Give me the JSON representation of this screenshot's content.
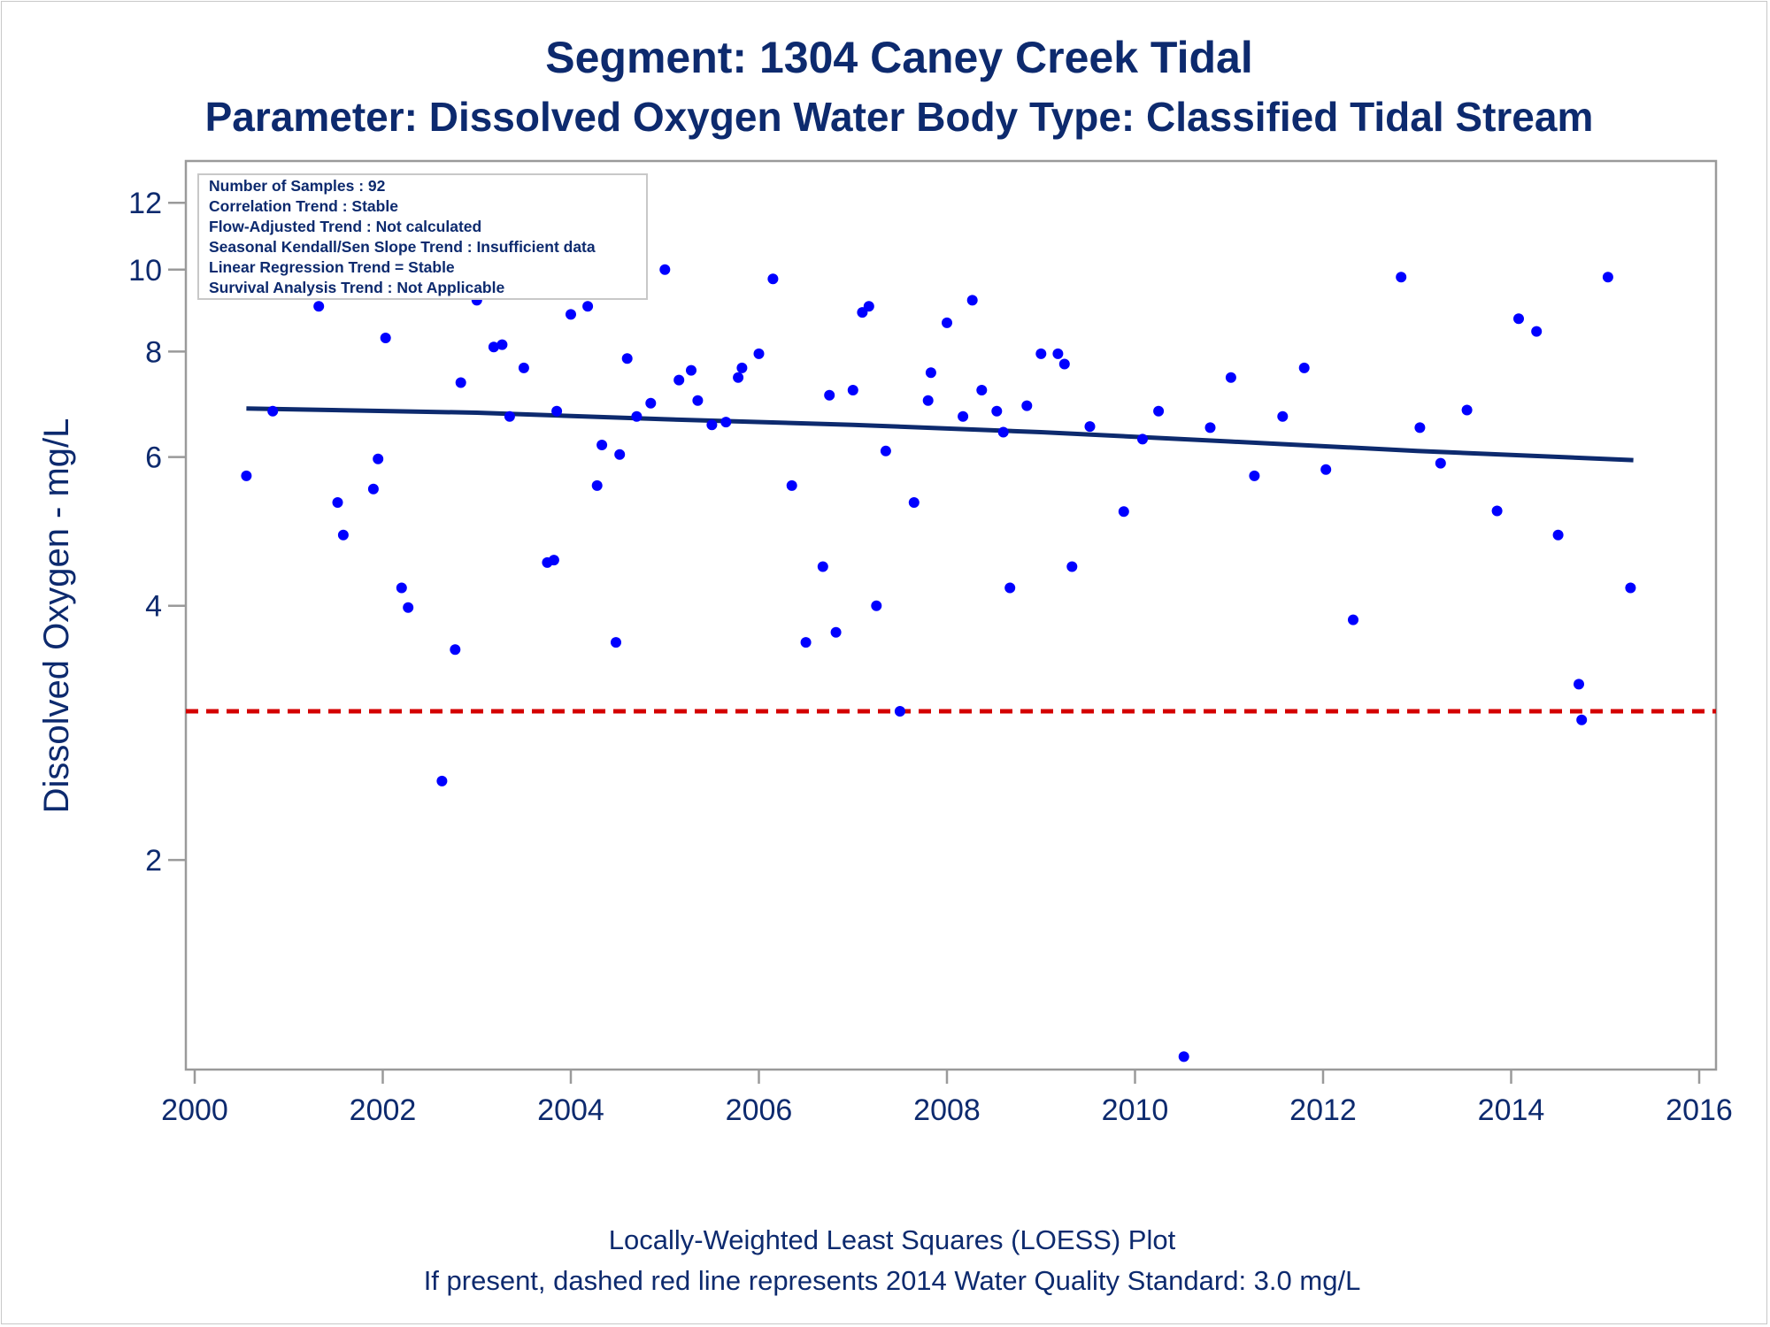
{
  "chart_data": {
    "type": "scatter",
    "title": "Segment: 1304  Caney Creek Tidal",
    "subtitle": "Parameter: Dissolved Oxygen   Water Body Type: Classified Tidal Stream",
    "xlabel": "",
    "ylabel": "Dissolved Oxygen - mg/L",
    "y_scale": "log",
    "xlim": [
      2000,
      2016
    ],
    "ylim": [
      1.16,
      13
    ],
    "x_ticks": [
      "2000",
      "2002",
      "2004",
      "2006",
      "2008",
      "2010",
      "2012",
      "2014",
      "2016"
    ],
    "y_ticks": [
      "2",
      "4",
      "6",
      "8",
      "10",
      "12"
    ],
    "grid": false,
    "stats": [
      "Number of Samples : 92",
      "Correlation Trend : Stable",
      "Flow-Adjusted Trend : Not calculated",
      "Seasonal Kendall/Sen Slope Trend : Insufficient data",
      "Linear Regression Trend = Stable",
      "Survival Analysis Trend : Not Applicable"
    ],
    "points": [
      [
        2000.55,
        5.7
      ],
      [
        2000.83,
        6.8
      ],
      [
        2001.07,
        10.3
      ],
      [
        2001.32,
        9.05
      ],
      [
        2001.52,
        5.3
      ],
      [
        2001.58,
        4.85
      ],
      [
        2001.9,
        5.5
      ],
      [
        2001.95,
        5.97
      ],
      [
        2002.03,
        8.3
      ],
      [
        2002.2,
        4.2
      ],
      [
        2002.27,
        3.98
      ],
      [
        2002.43,
        12.6
      ],
      [
        2002.63,
        2.48
      ],
      [
        2002.77,
        3.55
      ],
      [
        2002.83,
        7.35
      ],
      [
        2003.0,
        9.2
      ],
      [
        2003.18,
        8.1
      ],
      [
        2003.27,
        8.15
      ],
      [
        2003.35,
        6.7
      ],
      [
        2003.5,
        7.65
      ],
      [
        2003.75,
        4.5
      ],
      [
        2003.82,
        4.53
      ],
      [
        2003.85,
        6.8
      ],
      [
        2004.0,
        8.85
      ],
      [
        2004.18,
        9.05
      ],
      [
        2004.28,
        5.55
      ],
      [
        2004.33,
        6.2
      ],
      [
        2004.48,
        3.62
      ],
      [
        2004.52,
        6.04
      ],
      [
        2004.6,
        7.85
      ],
      [
        2004.7,
        6.7
      ],
      [
        2004.85,
        6.95
      ],
      [
        2005.0,
        10.0
      ],
      [
        2005.15,
        7.4
      ],
      [
        2005.28,
        7.6
      ],
      [
        2005.35,
        7.0
      ],
      [
        2005.5,
        6.55
      ],
      [
        2005.65,
        6.6
      ],
      [
        2005.78,
        7.45
      ],
      [
        2005.82,
        7.65
      ],
      [
        2006.0,
        7.95
      ],
      [
        2006.15,
        9.75
      ],
      [
        2006.35,
        5.55
      ],
      [
        2006.5,
        3.62
      ],
      [
        2006.68,
        4.45
      ],
      [
        2006.75,
        7.1
      ],
      [
        2006.82,
        3.72
      ],
      [
        2007.0,
        7.2
      ],
      [
        2007.1,
        8.9
      ],
      [
        2007.17,
        9.05
      ],
      [
        2007.25,
        4.0
      ],
      [
        2007.35,
        6.1
      ],
      [
        2007.5,
        3.0
      ],
      [
        2007.65,
        5.3
      ],
      [
        2007.8,
        7.0
      ],
      [
        2007.83,
        7.55
      ],
      [
        2008.0,
        8.65
      ],
      [
        2008.17,
        6.7
      ],
      [
        2008.27,
        9.2
      ],
      [
        2008.37,
        7.2
      ],
      [
        2008.53,
        6.8
      ],
      [
        2008.6,
        6.42
      ],
      [
        2008.67,
        4.2
      ],
      [
        2008.85,
        6.9
      ],
      [
        2009.0,
        7.95
      ],
      [
        2009.18,
        7.95
      ],
      [
        2009.25,
        7.73
      ],
      [
        2009.33,
        4.45
      ],
      [
        2009.52,
        6.52
      ],
      [
        2009.88,
        5.17
      ],
      [
        2010.08,
        6.3
      ],
      [
        2010.25,
        6.8
      ],
      [
        2010.52,
        1.17
      ],
      [
        2010.8,
        6.5
      ],
      [
        2011.02,
        7.45
      ],
      [
        2011.27,
        5.7
      ],
      [
        2011.57,
        6.7
      ],
      [
        2011.8,
        7.65
      ],
      [
        2012.03,
        5.8
      ],
      [
        2012.32,
        3.85
      ],
      [
        2012.83,
        9.8
      ],
      [
        2013.03,
        6.5
      ],
      [
        2013.25,
        5.9
      ],
      [
        2013.53,
        6.82
      ],
      [
        2013.85,
        5.18
      ],
      [
        2014.08,
        8.75
      ],
      [
        2014.27,
        8.45
      ],
      [
        2014.5,
        4.85
      ],
      [
        2014.72,
        3.23
      ],
      [
        2014.75,
        2.93
      ],
      [
        2015.03,
        9.8
      ],
      [
        2015.27,
        4.2
      ]
    ],
    "loess": [
      [
        2000.55,
        6.85
      ],
      [
        2003,
        6.77
      ],
      [
        2005,
        6.65
      ],
      [
        2007,
        6.55
      ],
      [
        2009,
        6.42
      ],
      [
        2011,
        6.26
      ],
      [
        2013,
        6.1
      ],
      [
        2015.3,
        5.95
      ]
    ],
    "standard_line": {
      "value": 3.0,
      "style": "dashed",
      "color": "#d40000"
    },
    "colors": {
      "points": "#0000ff",
      "loess": "#0d2a6e",
      "text": "#0d2a6e",
      "axis": "#9a9a9a"
    }
  },
  "footnote": {
    "line1": "Locally-Weighted Least Squares (LOESS) Plot",
    "line2": "If present, dashed red line represents 2014 Water Quality Standard: 3.0 mg/L"
  }
}
